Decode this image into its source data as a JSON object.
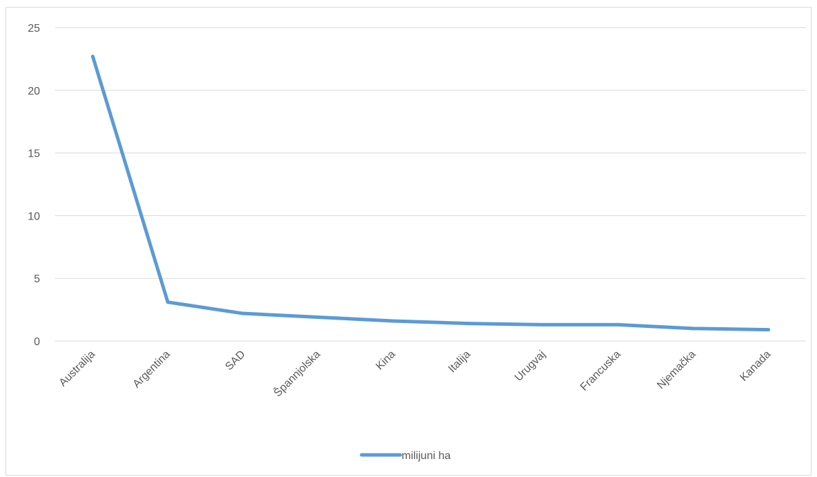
{
  "chart_data": {
    "type": "line",
    "categories": [
      "Australija",
      "Argentina",
      "SAD",
      "Špannjolska",
      "Kina",
      "Italija",
      "Urugvaj",
      "Francuska",
      "Njemačka",
      "Kanada"
    ],
    "series": [
      {
        "name": "milijuni ha",
        "values": [
          22.7,
          3.1,
          2.2,
          1.9,
          1.6,
          1.4,
          1.3,
          1.3,
          1.0,
          0.9
        ],
        "color": "#5b9bd5"
      }
    ],
    "ylim": [
      0,
      25
    ],
    "yticks": [
      0,
      5,
      10,
      15,
      20,
      25
    ],
    "grid": true,
    "gridColor": "#d9d9d9",
    "legend_position": "bottom"
  }
}
